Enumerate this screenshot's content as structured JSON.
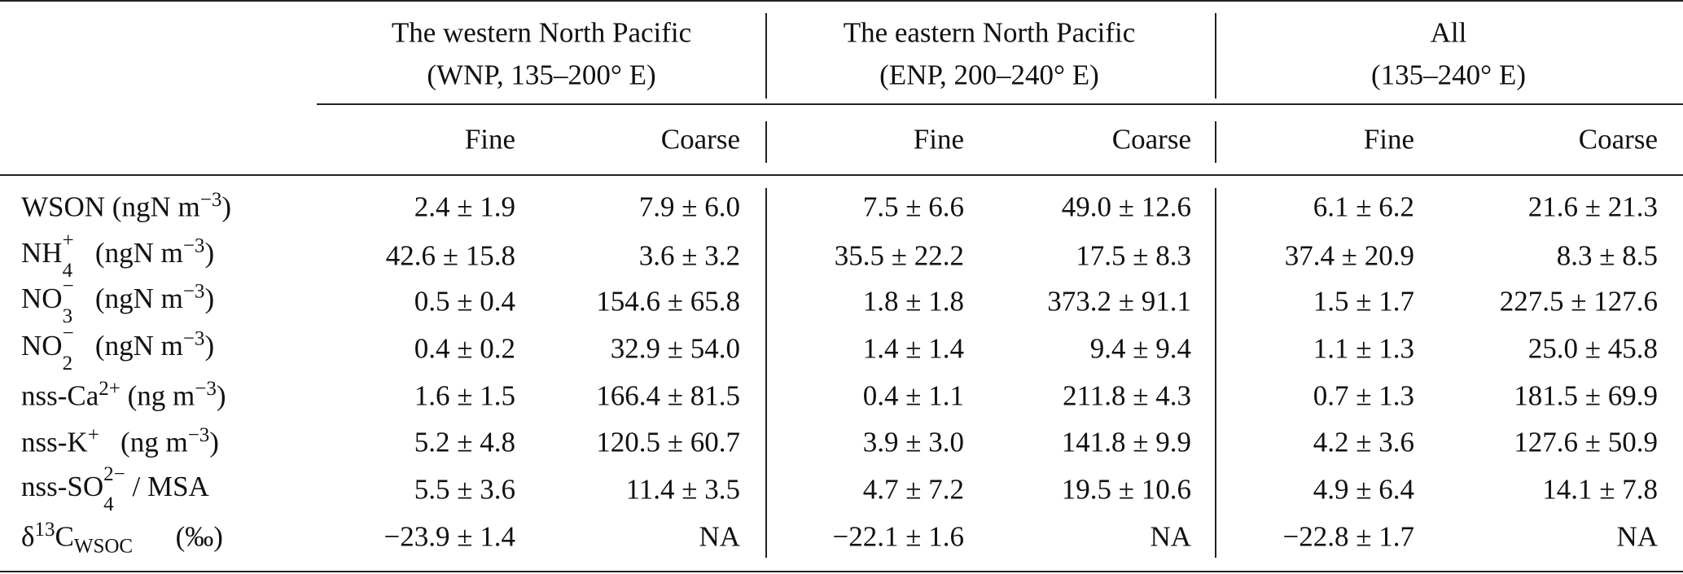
{
  "table": {
    "groups": [
      {
        "name": "The western North Pacific",
        "range": "(WNP, 135–200° E)",
        "columns": [
          "Fine",
          "Coarse"
        ]
      },
      {
        "name": "The eastern North Pacific",
        "range": "(ENP, 200–240° E)",
        "columns": [
          "Fine",
          "Coarse"
        ]
      },
      {
        "name": "All",
        "range": "(135–240° E)",
        "columns": [
          "Fine",
          "Coarse"
        ]
      }
    ],
    "rows": [
      {
        "label": [
          {
            "text": "WSON (ngN m"
          },
          {
            "sup": "−3"
          },
          {
            "text": ")"
          }
        ],
        "cells": [
          "2.4 ± 1.9",
          "7.9 ± 6.0",
          "7.5 ± 6.6",
          "49.0 ± 12.6",
          "6.1 ± 6.2",
          "21.6 ± 21.3"
        ]
      },
      {
        "label": [
          {
            "text": "NH"
          },
          {
            "sub": "4",
            "sup": "+"
          },
          {
            "text": "   (ngN m"
          },
          {
            "sup": "−3"
          },
          {
            "text": ")"
          }
        ],
        "cells": [
          "42.6 ± 15.8",
          "3.6 ± 3.2",
          "35.5 ± 22.2",
          "17.5 ± 8.3",
          "37.4 ± 20.9",
          "8.3 ± 8.5"
        ]
      },
      {
        "label": [
          {
            "text": "NO"
          },
          {
            "sub": "3",
            "sup": "−"
          },
          {
            "text": "   (ngN m"
          },
          {
            "sup": "−3"
          },
          {
            "text": ")"
          }
        ],
        "cells": [
          "0.5 ± 0.4",
          "154.6 ± 65.8",
          "1.8 ± 1.8",
          "373.2 ± 91.1",
          "1.5 ± 1.7",
          "227.5 ± 127.6"
        ]
      },
      {
        "label": [
          {
            "text": "NO"
          },
          {
            "sub": "2",
            "sup": "−"
          },
          {
            "text": "   (ngN m"
          },
          {
            "sup": "−3"
          },
          {
            "text": ")"
          }
        ],
        "cells": [
          "0.4 ± 0.2",
          "32.9 ± 54.0",
          "1.4 ± 1.4",
          "9.4 ± 9.4",
          "1.1 ± 1.3",
          "25.0 ± 45.8"
        ]
      },
      {
        "label": [
          {
            "text": "nss-Ca"
          },
          {
            "sup": "2+"
          },
          {
            "text": " (ng m"
          },
          {
            "sup": "−3"
          },
          {
            "text": ")"
          }
        ],
        "cells": [
          "1.6 ± 1.5",
          "166.4 ± 81.5",
          "0.4 ± 1.1",
          "211.8 ± 4.3",
          "0.7 ± 1.3",
          "181.5 ± 69.9"
        ]
      },
      {
        "label": [
          {
            "text": "nss-K"
          },
          {
            "sup": "+"
          },
          {
            "text": "   (ng m"
          },
          {
            "sup": "−3"
          },
          {
            "text": ")"
          }
        ],
        "cells": [
          "5.2 ± 4.8",
          "120.5 ± 60.7",
          "3.9 ± 3.0",
          "141.8 ± 9.9",
          "4.2 ± 3.6",
          "127.6 ± 50.9"
        ]
      },
      {
        "label": [
          {
            "text": "nss-SO"
          },
          {
            "sub": "4",
            "sup": "2−"
          },
          {
            "text": " / MSA"
          }
        ],
        "cells": [
          "5.5 ± 3.6",
          "11.4 ± 3.5",
          "4.7 ± 7.2",
          "19.5 ± 10.6",
          "4.9 ± 6.4",
          "14.1 ± 7.8"
        ]
      },
      {
        "label": [
          {
            "text": "δ"
          },
          {
            "sup": "13"
          },
          {
            "text": "C"
          },
          {
            "sub": "WSOC"
          },
          {
            "text": "      (‰)"
          }
        ],
        "cells": [
          "−23.9 ± 1.4",
          "NA",
          "−22.1 ± 1.6",
          "NA",
          "−22.8 ± 1.7",
          "NA"
        ]
      }
    ]
  }
}
